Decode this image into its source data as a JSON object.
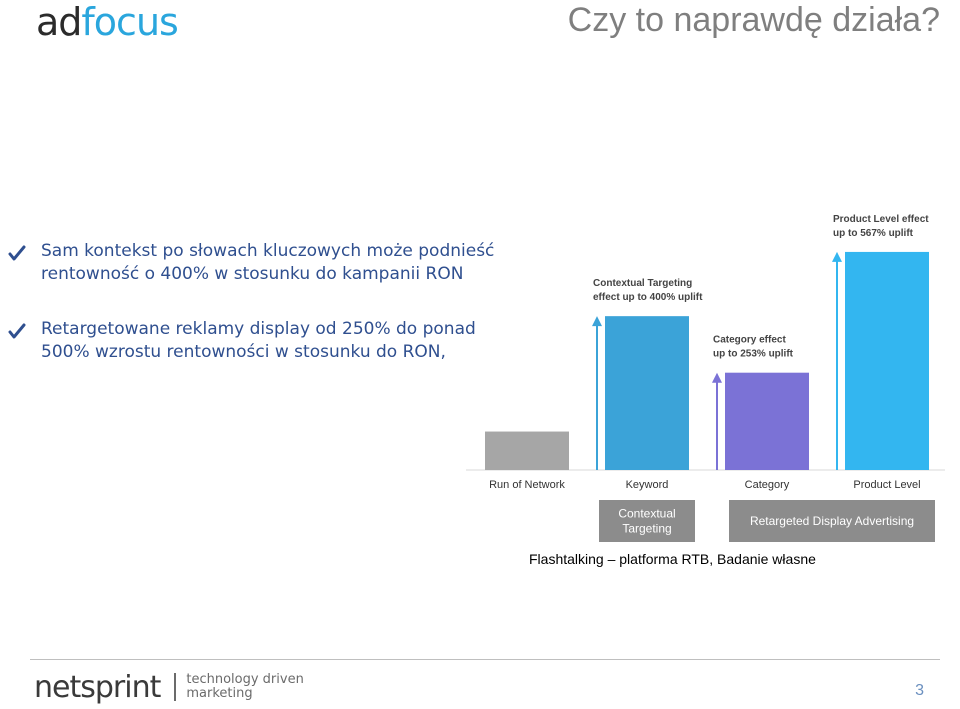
{
  "header": {
    "logo_ad": "ad",
    "logo_focus": "focus",
    "title": "Czy to naprawdę działa?"
  },
  "bullets": [
    "Sam kontekst  po słowach kluczowych może podnieść  rentowność o 400% w stosunku do kampanii RON",
    "Retargetowane reklamy display od 250% do ponad 500% wzrostu rentowności w stosunku do RON,"
  ],
  "chart_data": {
    "type": "bar",
    "categories": [
      "Run of Network",
      "Keyword",
      "Category",
      "Product Level"
    ],
    "values": [
      100,
      400,
      253,
      567
    ],
    "ylim": [
      0,
      650
    ],
    "colors": [
      "#a6a6a6",
      "#3ba3d8",
      "#7b72d6",
      "#33b6f0"
    ],
    "annotations": [
      {
        "category": "Keyword",
        "lines": [
          "Contextual Targeting",
          "effect up to 400% uplift"
        ]
      },
      {
        "category": "Category",
        "lines": [
          "Category effect",
          "up to 253% uplift"
        ]
      },
      {
        "category": "Product Level",
        "lines": [
          "Product Level effect",
          "up to 567% uplift"
        ]
      }
    ],
    "groups": [
      {
        "label_lines": [
          "Contextual",
          "Targeting"
        ],
        "categories": [
          "Keyword"
        ]
      },
      {
        "label_lines": [
          "Retargeted Display Advertising"
        ],
        "categories": [
          "Category",
          "Product Level"
        ]
      }
    ],
    "grid": false,
    "legend": "none"
  },
  "source": "Flashtalking – platforma RTB, Badanie własne",
  "footer": {
    "logo": "netsprint",
    "tagline_1": "technology driven",
    "tagline_2": "marketing",
    "page_number": "3"
  },
  "colors": {
    "accent": "#2aa6dd",
    "bullet_text": "#2f4f8f",
    "group_box": "#7f7f7f"
  }
}
